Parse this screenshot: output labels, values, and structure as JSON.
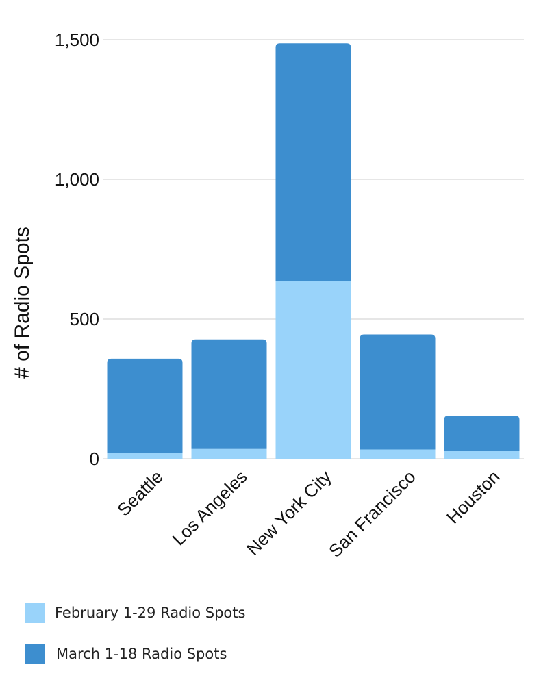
{
  "chart_data": {
    "type": "bar",
    "stacked": true,
    "ylabel": "# of Radio Spots",
    "xlabel": "",
    "ylim": [
      0,
      1500
    ],
    "yticks": [
      0,
      500,
      1000,
      1500
    ],
    "ytick_labels": [
      "0",
      "500",
      "1,000",
      "1,500"
    ],
    "grid": true,
    "legend_position": "bottom-left",
    "categories": [
      "Seattle",
      "Los Angeles",
      "New York City",
      "San Francisco",
      "Houston"
    ],
    "series": [
      {
        "name": "February 1-29 Radio Spots",
        "color": "#99D3FA",
        "values": [
          22,
          35,
          637,
          33,
          27
        ]
      },
      {
        "name": "March 1-18 Radio Spots",
        "color": "#3D8ECF",
        "values": [
          336,
          392,
          850,
          412,
          127
        ]
      }
    ]
  }
}
